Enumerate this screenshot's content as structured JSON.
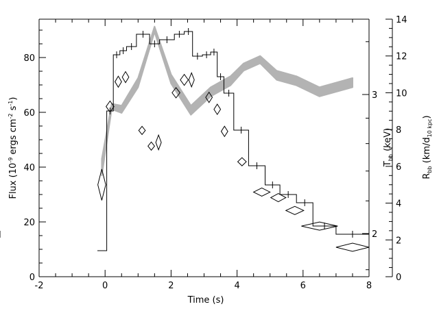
{
  "chart_data": {
    "type": "line",
    "xlabel": "Time (s)",
    "ylabel_left": {
      "main": "Flux (10",
      "sup1": "-9",
      "mid": " ergs cm",
      "sup2": "-2",
      "mid2": " s",
      "sup3": "-1",
      "end": ")"
    },
    "ylabel_right_inner": {
      "main": "T",
      "sub": "bb",
      "end": " (keV)"
    },
    "ylabel_right_outer": {
      "main": "R",
      "sub": "bb",
      "mid": " (km/d",
      "sub2": "10 kpc",
      "end": ")"
    },
    "xlim": [
      -2,
      8
    ],
    "ylim_left": [
      0,
      94
    ],
    "ylim_right_outer": [
      0,
      14
    ],
    "x_ticks": [
      "-2",
      "0",
      "2",
      "4",
      "6",
      "8"
    ],
    "y_left_ticks": [
      "0",
      "20",
      "40",
      "60",
      "80"
    ],
    "y_right_outer_ticks": [
      "0",
      "2",
      "4",
      "6",
      "8",
      "10",
      "12",
      "14"
    ],
    "y_right_inner_ticks": [
      {
        "label": "2",
        "value": 2
      },
      {
        "label": "3",
        "value": 3
      }
    ],
    "series": [
      {
        "kind": "step",
        "axis": "left",
        "points": [
          {
            "x": -0.15,
            "y": 9.5
          },
          {
            "x": 0.05,
            "y": 60.5
          },
          {
            "x": 0.25,
            "y": 81
          },
          {
            "x": 0.45,
            "y": 82.5
          },
          {
            "x": 0.65,
            "y": 84
          },
          {
            "x": 0.95,
            "y": 88.5
          },
          {
            "x": 1.35,
            "y": 85
          },
          {
            "x": 1.65,
            "y": 86.5
          },
          {
            "x": 2.1,
            "y": 88.5
          },
          {
            "x": 2.4,
            "y": 89.5
          },
          {
            "x": 2.65,
            "y": 80.5
          },
          {
            "x": 2.95,
            "y": 81
          },
          {
            "x": 3.2,
            "y": 82
          },
          {
            "x": 3.4,
            "y": 73
          },
          {
            "x": 3.6,
            "y": 67
          },
          {
            "x": 3.9,
            "y": 53.5
          },
          {
            "x": 4.35,
            "y": 40.5
          },
          {
            "x": 4.85,
            "y": 33.5
          },
          {
            "x": 5.3,
            "y": 30
          },
          {
            "x": 5.8,
            "y": 27
          },
          {
            "x": 6.3,
            "y": 18.5
          },
          {
            "x": 7.0,
            "y": 15.5
          },
          {
            "x": 7.8,
            "y": 15.5
          }
        ],
        "edges": [
          -0.15,
          0.05,
          0.25,
          0.45,
          0.65,
          0.95,
          1.35,
          1.65,
          2.1,
          2.4,
          2.65,
          2.95,
          3.2,
          3.4,
          3.6,
          3.9,
          4.35,
          4.85,
          5.3,
          5.8,
          6.3,
          7.0,
          8.0
        ]
      },
      {
        "kind": "band",
        "axis": "right_outer",
        "x": [
          -0.1,
          0.2,
          0.5,
          1.0,
          1.5,
          2.0,
          2.6,
          3.2,
          3.8,
          4.2,
          4.7,
          5.2,
          5.8,
          6.5,
          7.5
        ],
        "lo": [
          5.5,
          9.1,
          8.9,
          10.3,
          13.3,
          10.5,
          8.8,
          9.8,
          10.4,
          11.2,
          11.6,
          10.7,
          10.4,
          9.8,
          10.3
        ],
        "hi": [
          6.4,
          9.4,
          9.3,
          10.8,
          13.6,
          11.0,
          9.3,
          10.3,
          10.9,
          11.6,
          12.0,
          11.2,
          10.9,
          10.3,
          10.8
        ]
      },
      {
        "kind": "diamonds",
        "axis": "right_outer",
        "points": [
          {
            "x": -0.1,
            "y": 5.0,
            "ex": 0.12,
            "ey": 0.85
          },
          {
            "x": 0.15,
            "y": 9.25,
            "ex": 0.12,
            "ey": 0.3
          },
          {
            "x": 0.4,
            "y": 10.6,
            "ex": 0.1,
            "ey": 0.3
          },
          {
            "x": 0.62,
            "y": 10.85,
            "ex": 0.1,
            "ey": 0.3
          },
          {
            "x": 1.12,
            "y": 7.95,
            "ex": 0.1,
            "ey": 0.22
          },
          {
            "x": 1.4,
            "y": 7.1,
            "ex": 0.1,
            "ey": 0.22
          },
          {
            "x": 1.62,
            "y": 7.3,
            "ex": 0.05,
            "ey": 0.4
          },
          {
            "x": 2.15,
            "y": 10.0,
            "ex": 0.12,
            "ey": 0.28
          },
          {
            "x": 2.4,
            "y": 10.7,
            "ex": 0.12,
            "ey": 0.3
          },
          {
            "x": 2.62,
            "y": 10.7,
            "ex": 0.07,
            "ey": 0.38
          },
          {
            "x": 3.15,
            "y": 9.75,
            "ex": 0.1,
            "ey": 0.28
          },
          {
            "x": 3.4,
            "y": 9.1,
            "ex": 0.1,
            "ey": 0.28
          },
          {
            "x": 3.62,
            "y": 7.9,
            "ex": 0.1,
            "ey": 0.28
          },
          {
            "x": 4.15,
            "y": 6.25,
            "ex": 0.13,
            "ey": 0.22
          },
          {
            "x": 4.75,
            "y": 4.6,
            "ex": 0.25,
            "ey": 0.18
          },
          {
            "x": 5.25,
            "y": 4.3,
            "ex": 0.23,
            "ey": 0.18
          },
          {
            "x": 5.75,
            "y": 3.6,
            "ex": 0.27,
            "ey": 0.18
          },
          {
            "x": 6.5,
            "y": 2.75,
            "ex": 0.55,
            "ey": 0.17
          },
          {
            "x": 7.5,
            "y": 1.6,
            "ex": 0.5,
            "ey": 0.22
          }
        ]
      }
    ],
    "colors": {
      "step": "#000000",
      "band": "#b3b3b3",
      "diamond": "#000000"
    }
  }
}
